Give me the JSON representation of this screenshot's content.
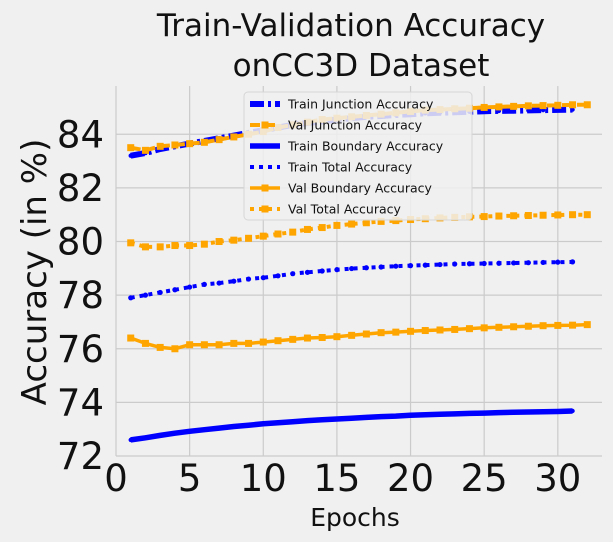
{
  "chart_data": {
    "type": "line",
    "title_lines": [
      "Train-Validation Accuracy",
      "onCC3D Dataset"
    ],
    "xlabel": "Epochs",
    "ylabel": "Accuracy (in %)",
    "xlim": [
      0,
      33
    ],
    "ylim": [
      72,
      85.8
    ],
    "xticks": [
      0,
      5,
      10,
      15,
      20,
      25,
      30
    ],
    "yticks": [
      72,
      74,
      76,
      78,
      80,
      82,
      84
    ],
    "grid": true,
    "legend_position": "top-center",
    "series": [
      {
        "name": "Train Junction Accuracy",
        "color": "#0000ff",
        "style": "dashdot",
        "x": [
          1,
          2,
          3,
          4,
          5,
          6,
          7,
          8,
          9,
          10,
          11,
          12,
          13,
          14,
          15,
          16,
          17,
          18,
          19,
          20,
          21,
          22,
          23,
          24,
          25,
          26,
          27,
          28,
          29,
          30,
          31
        ],
        "y": [
          83.2,
          83.3,
          83.45,
          83.55,
          83.65,
          83.75,
          83.85,
          83.95,
          84.05,
          84.15,
          84.25,
          84.35,
          84.42,
          84.48,
          84.55,
          84.6,
          84.65,
          84.68,
          84.72,
          84.75,
          84.78,
          84.8,
          84.82,
          84.84,
          84.86,
          84.87,
          84.88,
          84.89,
          84.9,
          84.91,
          84.92
        ]
      },
      {
        "name": "Val Junction Accuracy",
        "color": "#ffa500",
        "style": "dashed-square",
        "x": [
          1,
          2,
          3,
          4,
          5,
          6,
          7,
          8,
          9,
          10,
          11,
          12,
          13,
          14,
          15,
          16,
          17,
          18,
          19,
          20,
          21,
          22,
          23,
          24,
          25,
          26,
          27,
          28,
          29,
          30,
          31,
          32
        ],
        "y": [
          83.5,
          83.4,
          83.55,
          83.6,
          83.65,
          83.7,
          83.8,
          83.9,
          84.0,
          84.1,
          84.25,
          84.35,
          84.45,
          84.55,
          84.6,
          84.65,
          84.7,
          84.75,
          84.8,
          84.85,
          84.9,
          84.92,
          84.95,
          84.97,
          85.0,
          85.02,
          85.04,
          85.06,
          85.07,
          85.08,
          85.1,
          85.1
        ]
      },
      {
        "name": "Train Boundary Accuracy",
        "color": "#0000ff",
        "style": "solid-star",
        "x": [
          1,
          2,
          3,
          4,
          5,
          6,
          7,
          8,
          9,
          10,
          11,
          12,
          13,
          14,
          15,
          16,
          17,
          18,
          19,
          20,
          21,
          22,
          23,
          24,
          25,
          26,
          27,
          28,
          29,
          30,
          31
        ],
        "y": [
          72.6,
          72.68,
          72.77,
          72.85,
          72.92,
          72.98,
          73.04,
          73.1,
          73.15,
          73.2,
          73.24,
          73.28,
          73.32,
          73.35,
          73.38,
          73.41,
          73.44,
          73.47,
          73.49,
          73.52,
          73.54,
          73.56,
          73.57,
          73.59,
          73.6,
          73.62,
          73.63,
          73.64,
          73.65,
          73.66,
          73.68
        ]
      },
      {
        "name": "Train Total Accuracy",
        "color": "#0000ff",
        "style": "dotted-star",
        "x": [
          1,
          2,
          3,
          4,
          5,
          6,
          7,
          8,
          9,
          10,
          11,
          12,
          13,
          14,
          15,
          16,
          17,
          18,
          19,
          20,
          21,
          22,
          23,
          24,
          25,
          26,
          27,
          28,
          29,
          30,
          31
        ],
        "y": [
          77.9,
          78.0,
          78.1,
          78.2,
          78.3,
          78.4,
          78.45,
          78.52,
          78.6,
          78.65,
          78.72,
          78.8,
          78.85,
          78.9,
          78.95,
          78.99,
          79.02,
          79.05,
          79.08,
          79.1,
          79.12,
          79.14,
          79.16,
          79.17,
          79.18,
          79.19,
          79.2,
          79.21,
          79.22,
          79.23,
          79.24
        ]
      },
      {
        "name": "Val Boundary Accuracy",
        "color": "#ffa500",
        "style": "solid-square",
        "x": [
          1,
          2,
          3,
          4,
          5,
          6,
          7,
          8,
          9,
          10,
          11,
          12,
          13,
          14,
          15,
          16,
          17,
          18,
          19,
          20,
          21,
          22,
          23,
          24,
          25,
          26,
          27,
          28,
          29,
          30,
          31,
          32
        ],
        "y": [
          76.4,
          76.2,
          76.05,
          76.0,
          76.15,
          76.15,
          76.15,
          76.2,
          76.2,
          76.25,
          76.3,
          76.35,
          76.4,
          76.42,
          76.45,
          76.5,
          76.55,
          76.6,
          76.62,
          76.65,
          76.68,
          76.7,
          76.72,
          76.75,
          76.78,
          76.8,
          76.82,
          76.84,
          76.86,
          76.87,
          76.88,
          76.9
        ]
      },
      {
        "name": "Val Total Accuracy",
        "color": "#ffa500",
        "style": "dotted-square",
        "x": [
          1,
          2,
          3,
          4,
          5,
          6,
          7,
          8,
          9,
          10,
          11,
          12,
          13,
          14,
          15,
          16,
          17,
          18,
          19,
          20,
          21,
          22,
          23,
          24,
          25,
          26,
          27,
          28,
          29,
          30,
          31,
          32
        ],
        "y": [
          79.95,
          79.8,
          79.8,
          79.85,
          79.85,
          79.9,
          80.0,
          80.05,
          80.12,
          80.2,
          80.28,
          80.35,
          80.45,
          80.52,
          80.6,
          80.65,
          80.7,
          80.75,
          80.78,
          80.82,
          80.85,
          80.88,
          80.9,
          80.92,
          80.93,
          80.95,
          80.96,
          80.97,
          80.98,
          80.99,
          81.0,
          81.0
        ]
      }
    ]
  }
}
